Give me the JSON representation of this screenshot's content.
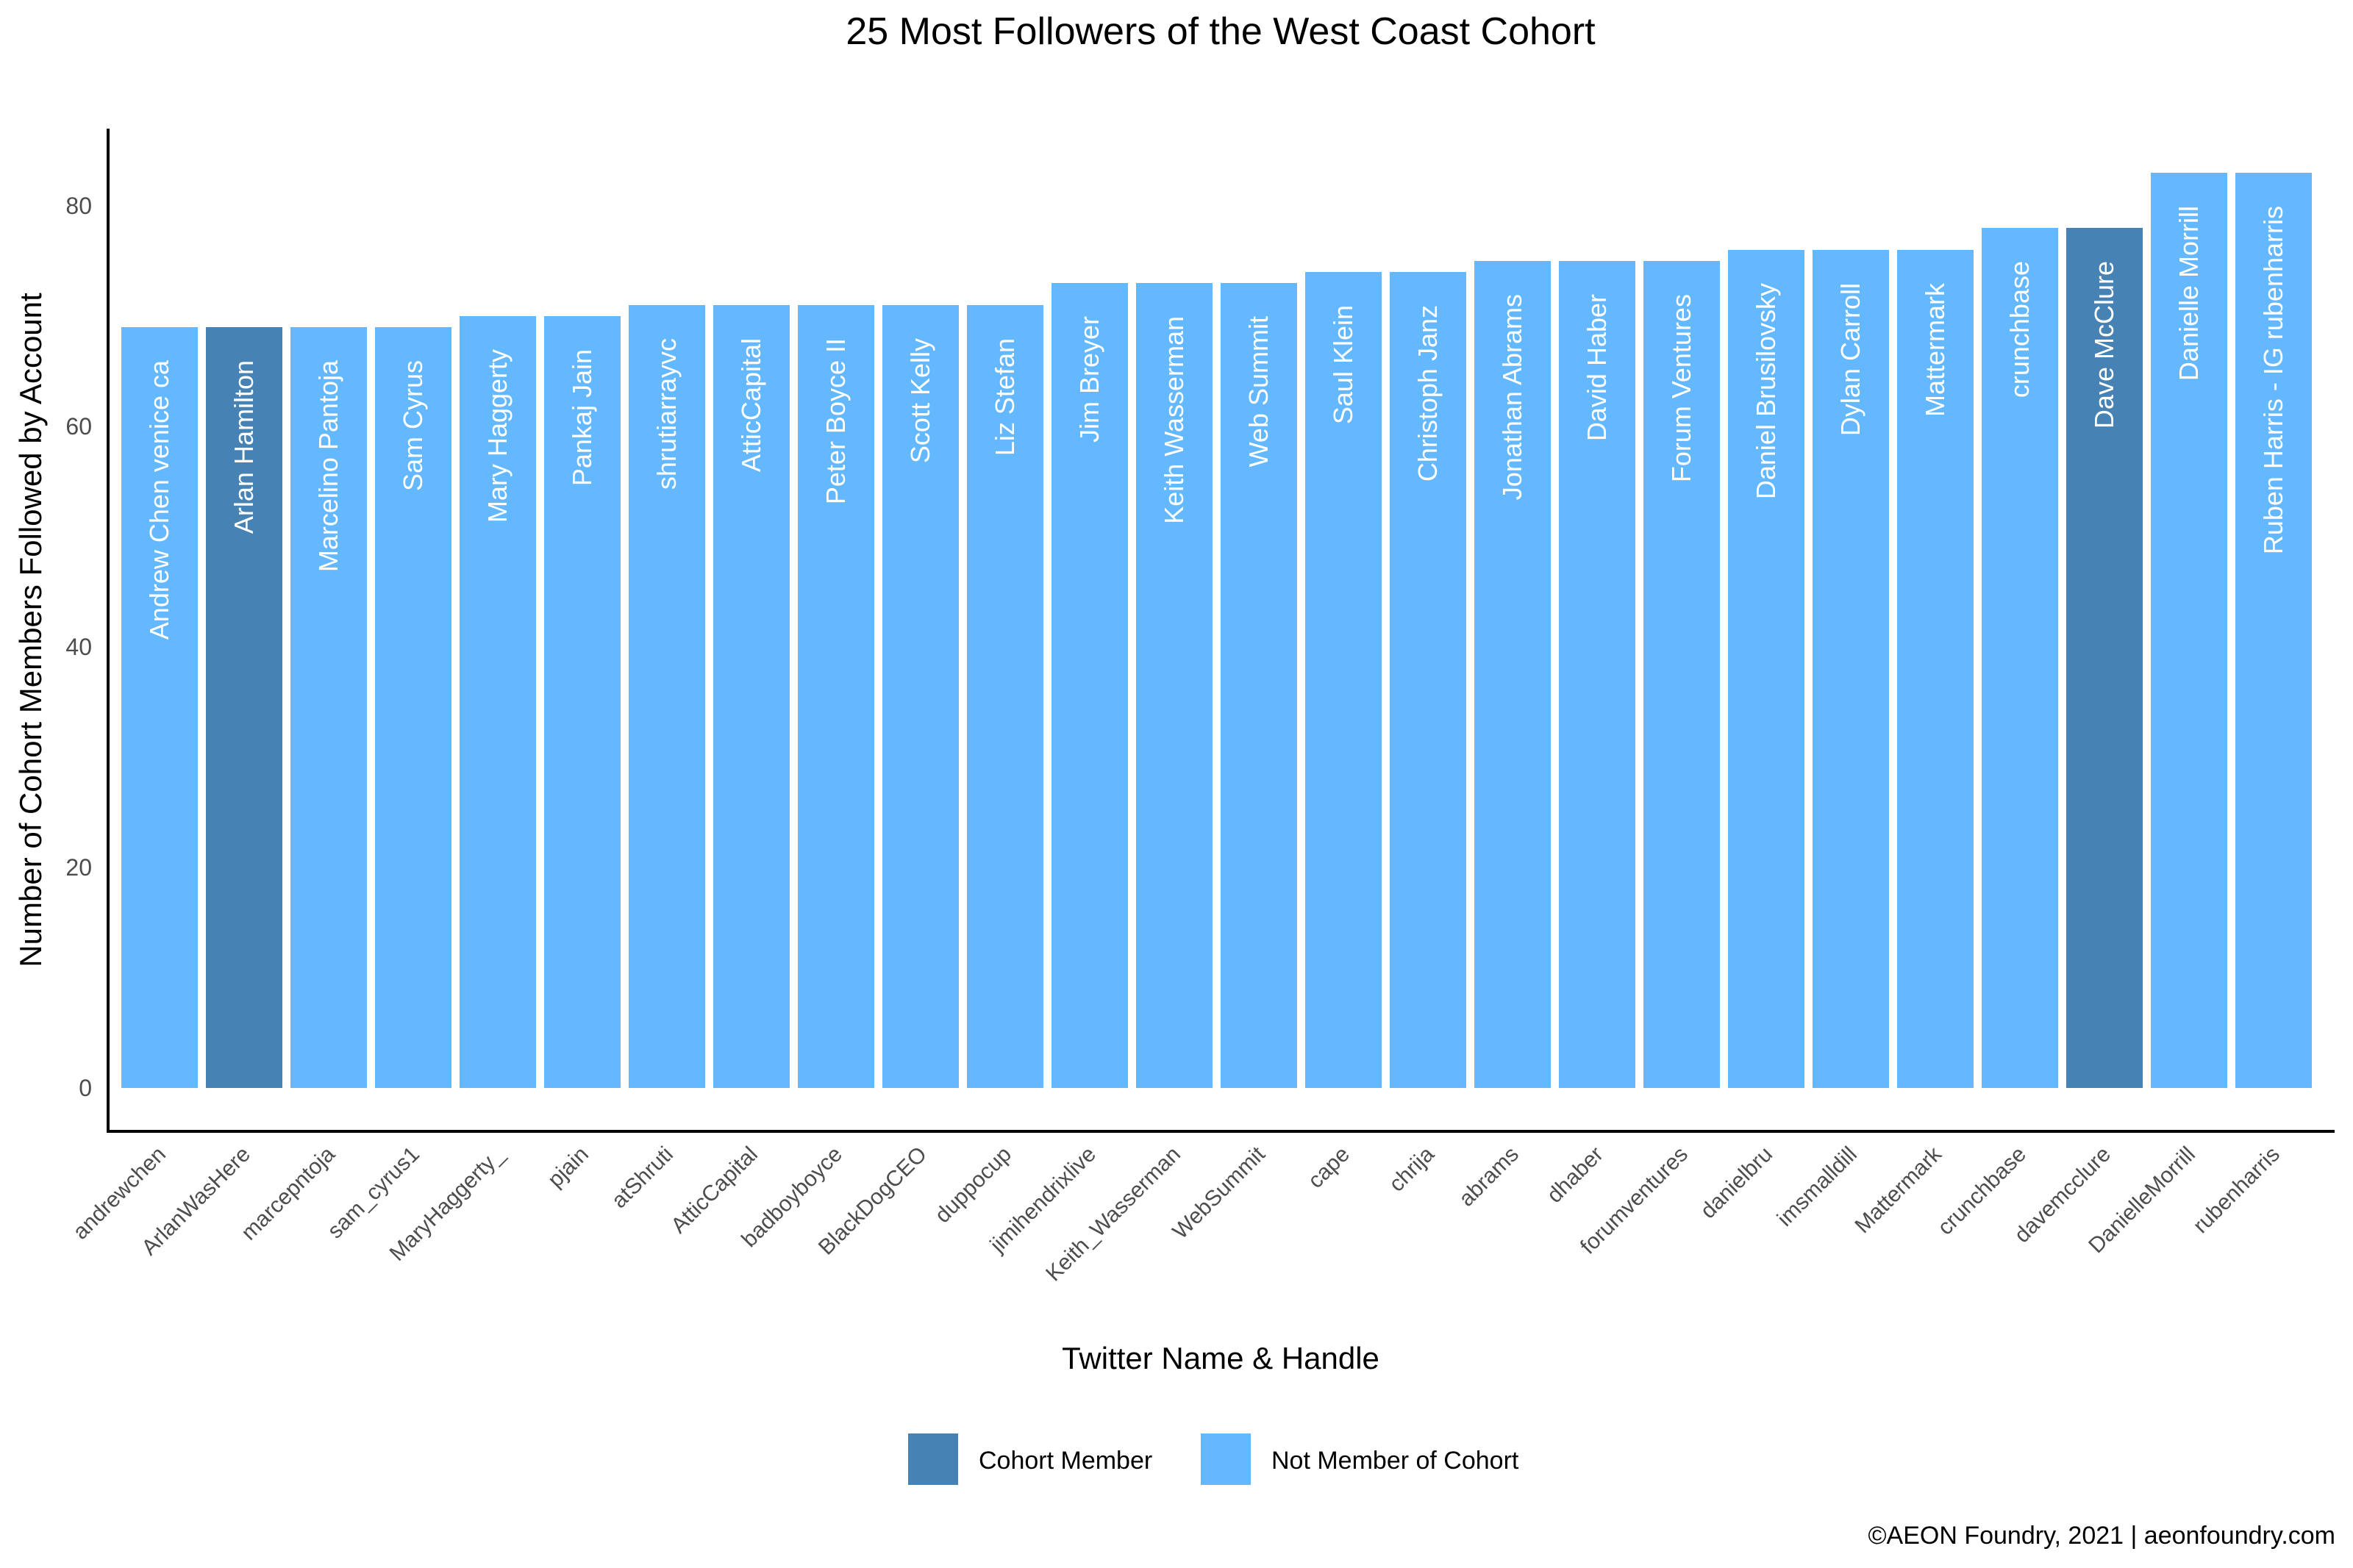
{
  "chart_data": {
    "type": "bar",
    "title": "25 Most Followers of the West Coast Cohort",
    "xlabel": "Twitter Name & Handle",
    "ylabel": "Number of Cohort Members Followed by Account",
    "ylim": [
      0,
      87
    ],
    "yticks": [
      0,
      20,
      40,
      60,
      80
    ],
    "grid": false,
    "legend_position": "bottom",
    "colors": {
      "Cohort Member": "#4682b4",
      "Not Member of Cohort": "#63b8ff"
    },
    "legend": [
      "Cohort Member",
      "Not Member of Cohort"
    ],
    "categories": [
      "andrewchen",
      "ArlanWasHere",
      "marcepntoja",
      "sam_cyrus1",
      "MaryHaggerty_",
      "pjain",
      "atShruti",
      "AtticCapital",
      "badboyboyce",
      "BlackDogCEO",
      "duppocup",
      "jimihendrixlive",
      "Keith_Wasserman",
      "WebSummit",
      "cape",
      "chrija",
      "abrams",
      "dhaber",
      "forumventures",
      "danielbru",
      "imsmalldill",
      "Mattermark",
      "crunchbase",
      "davemcclure",
      "DanielleMorrill",
      "rubenharris"
    ],
    "names": [
      "Andrew Chen venice ca",
      "Arlan Hamilton",
      "Marcelino Pantoja",
      "Sam Cyrus",
      "Mary Haggerty",
      "Pankaj Jain",
      "shrutiarrayvc",
      "AtticCapital",
      "Peter Boyce II",
      "Scott Kelly",
      "Liz Stefan",
      "Jim Breyer",
      "Keith Wasserman",
      "Web Summit",
      "Saul Klein",
      "Christoph Janz",
      "Jonathan Abrams",
      "David Haber",
      "Forum Ventures",
      "Daniel Brusilovsky",
      "Dylan Carroll",
      "Mattermark",
      "crunchbase",
      "Dave McClure",
      "Danielle Morrill",
      "Ruben Harris - IG rubenharris"
    ],
    "values": [
      69,
      69,
      69,
      69,
      70,
      70,
      71,
      71,
      71,
      71,
      71,
      73,
      73,
      73,
      74,
      74,
      75,
      75,
      75,
      76,
      76,
      76,
      78,
      78,
      83,
      83
    ],
    "groups": [
      "Not Member of Cohort",
      "Cohort Member",
      "Not Member of Cohort",
      "Not Member of Cohort",
      "Not Member of Cohort",
      "Not Member of Cohort",
      "Not Member of Cohort",
      "Not Member of Cohort",
      "Not Member of Cohort",
      "Not Member of Cohort",
      "Not Member of Cohort",
      "Not Member of Cohort",
      "Not Member of Cohort",
      "Not Member of Cohort",
      "Not Member of Cohort",
      "Not Member of Cohort",
      "Not Member of Cohort",
      "Not Member of Cohort",
      "Not Member of Cohort",
      "Not Member of Cohort",
      "Not Member of Cohort",
      "Not Member of Cohort",
      "Not Member of Cohort",
      "Cohort Member",
      "Not Member of Cohort",
      "Not Member of Cohort"
    ]
  },
  "caption": "©AEON Foundry, 2021 | aeonfoundry.com"
}
